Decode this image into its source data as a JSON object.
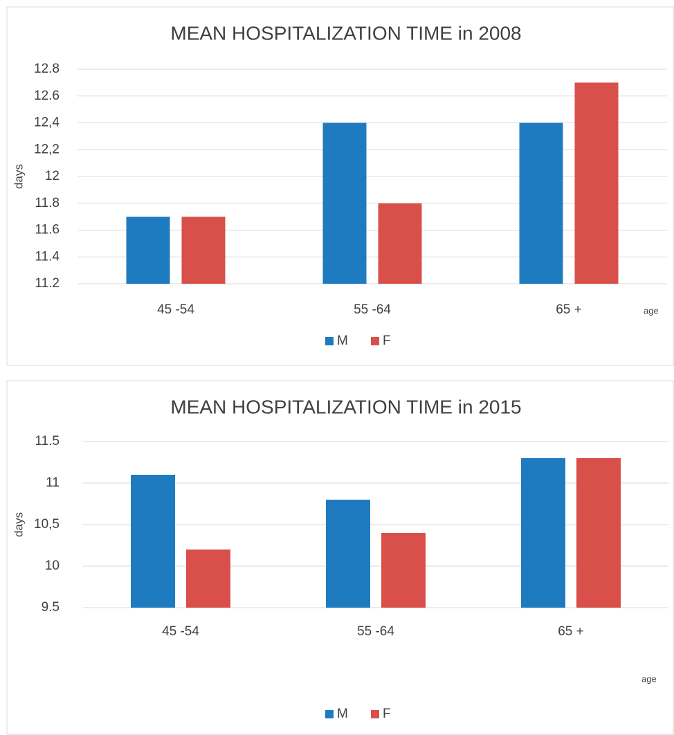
{
  "chart_data": [
    {
      "type": "bar",
      "title": "MEAN HOSPITALIZATION TIME in 2008",
      "y_label": "days",
      "x_label": "age",
      "categories": [
        "45 -54",
        "55 -64",
        "65 +"
      ],
      "series": [
        {
          "name": "M",
          "color": "#1f7bc0",
          "values": [
            11.7,
            12.4,
            12.4
          ]
        },
        {
          "name": "F",
          "color": "#d9504b",
          "values": [
            11.7,
            11.8,
            12.7
          ]
        }
      ],
      "ylim": [
        11.2,
        12.8
      ],
      "yticks": [
        {
          "value": 11.2,
          "label": "11.2"
        },
        {
          "value": 11.4,
          "label": "11.4"
        },
        {
          "value": 11.6,
          "label": "11.6"
        },
        {
          "value": 11.8,
          "label": "11.8"
        },
        12,
        {
          "value": 12.2,
          "label": "12,2"
        },
        {
          "value": 12.4,
          "label": "12,4"
        },
        {
          "value": 12.6,
          "label": "12.6"
        },
        {
          "value": 12.8,
          "label": "12.8"
        }
      ],
      "grid": true,
      "legend": "bottom"
    },
    {
      "type": "bar",
      "title": "MEAN HOSPITALIZATION TIME in 2015",
      "y_label": "days",
      "x_label": "age",
      "categories": [
        "45 -54",
        "55 -64",
        "65 +"
      ],
      "series": [
        {
          "name": "M",
          "color": "#1f7bc0",
          "values": [
            11.1,
            10.8,
            11.3
          ]
        },
        {
          "name": "F",
          "color": "#d9504b",
          "values": [
            10.2,
            10.4,
            11.3
          ]
        }
      ],
      "ylim": [
        9.5,
        11.5
      ],
      "yticks": [
        9.5,
        10,
        {
          "value": 10.5,
          "label": "10,5"
        },
        11,
        11.5
      ],
      "grid": true,
      "legend": "bottom"
    }
  ]
}
